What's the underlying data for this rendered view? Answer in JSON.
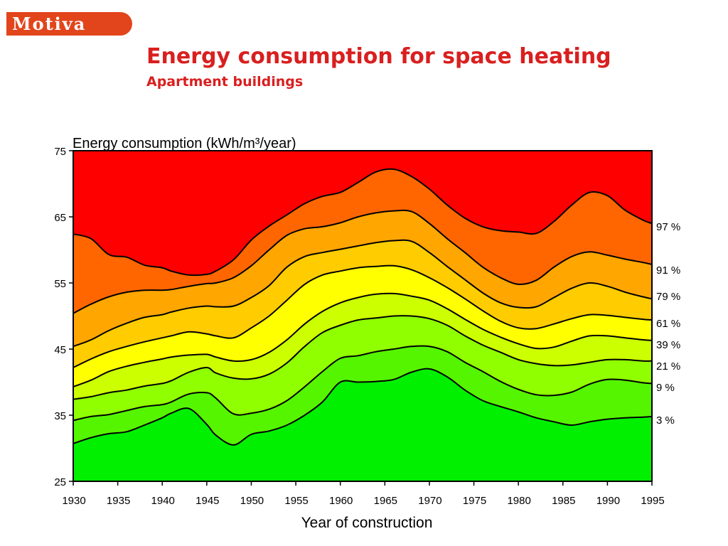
{
  "logo": {
    "text": "Motiva",
    "color": "#e2451b"
  },
  "header": {
    "title": "Energy consumption for space heating",
    "subtitle": "Apartment buildings",
    "color": "#d91f1f"
  },
  "chart_data": {
    "type": "area",
    "stacked": true,
    "ylabel": "Energy consumption (kWh/m³/year)",
    "xlabel": "Year of construction",
    "ylim": [
      25,
      75
    ],
    "xlim": [
      1930,
      1995
    ],
    "yticks": [
      25,
      35,
      45,
      55,
      65,
      75
    ],
    "yticklabels": [
      "25",
      "35",
      "45",
      "55",
      "65",
      "75"
    ],
    "xticks": [
      1930,
      1935,
      1940,
      1945,
      1950,
      1955,
      1960,
      1965,
      1970,
      1975,
      1980,
      1985,
      1990,
      1995
    ],
    "xticklabels": [
      "1930",
      "1935",
      "1940",
      "1945",
      "1950",
      "1955",
      "1960",
      "1965",
      "1970",
      "1975",
      "1980",
      "1985",
      "1990",
      "1995"
    ],
    "grid": false,
    "legend": "none",
    "x": [
      1930,
      1932,
      1934,
      1936,
      1938,
      1940,
      1941,
      1943,
      1945,
      1946,
      1948,
      1950,
      1952,
      1954,
      1956,
      1958,
      1960,
      1962,
      1964,
      1966,
      1968,
      1970,
      1972,
      1974,
      1976,
      1978,
      1980,
      1982,
      1984,
      1986,
      1988,
      1990,
      1992,
      1994,
      1995
    ],
    "boundaries": [
      {
        "name": "3 %",
        "values": [
          30.7,
          31.6,
          32.2,
          32.5,
          33.5,
          34.6,
          35.3,
          36.0,
          33.6,
          32.0,
          30.5,
          32.1,
          32.6,
          33.5,
          35.0,
          37.0,
          40.0,
          40.0,
          40.1,
          40.4,
          41.5,
          42.0,
          40.8,
          38.8,
          37.2,
          36.3,
          35.5,
          34.6,
          34.0,
          33.5,
          34.0,
          34.4,
          34.6,
          34.7,
          34.8
        ]
      },
      {
        "name": "9 %",
        "values": [
          34.2,
          34.8,
          35.1,
          35.7,
          36.3,
          36.6,
          37.0,
          38.2,
          38.4,
          37.6,
          35.2,
          35.3,
          35.9,
          37.2,
          39.3,
          41.6,
          43.6,
          44.0,
          44.6,
          45.0,
          45.4,
          45.4,
          44.6,
          43.0,
          41.6,
          40.1,
          38.9,
          38.1,
          38.0,
          38.5,
          39.7,
          40.4,
          40.3,
          39.9,
          39.8
        ]
      },
      {
        "name": "21 %",
        "values": [
          37.4,
          37.8,
          38.4,
          38.8,
          39.4,
          39.8,
          40.2,
          41.5,
          42.2,
          41.4,
          40.6,
          40.5,
          41.2,
          42.9,
          45.4,
          47.5,
          48.6,
          49.4,
          49.7,
          50.0,
          50.0,
          49.6,
          48.6,
          47.0,
          45.6,
          44.5,
          43.4,
          42.8,
          42.5,
          42.6,
          43.0,
          43.4,
          43.4,
          43.2,
          43.2
        ]
      },
      {
        "name": "39 %",
        "values": [
          39.3,
          40.3,
          41.6,
          42.4,
          43.0,
          43.5,
          43.8,
          44.1,
          44.2,
          43.8,
          43.2,
          43.4,
          44.5,
          46.4,
          48.8,
          50.7,
          52.0,
          52.8,
          53.3,
          53.4,
          53.0,
          52.4,
          51.1,
          49.5,
          48.0,
          46.8,
          45.8,
          45.1,
          45.3,
          46.2,
          47.0,
          47.0,
          46.7,
          46.4,
          46.3
        ]
      },
      {
        "name": "61 %",
        "values": [
          42.2,
          43.5,
          44.6,
          45.4,
          46.1,
          46.7,
          47.0,
          47.6,
          47.3,
          47.0,
          46.7,
          48.2,
          50.0,
          52.4,
          54.8,
          56.2,
          56.8,
          57.3,
          57.5,
          57.6,
          57.0,
          55.8,
          54.3,
          52.6,
          50.8,
          49.2,
          48.2,
          48.1,
          48.8,
          49.6,
          50.2,
          50.1,
          49.8,
          49.5,
          49.4
        ]
      },
      {
        "name": "79 %",
        "values": [
          45.4,
          46.4,
          47.8,
          48.9,
          49.8,
          50.2,
          50.6,
          51.2,
          51.5,
          51.4,
          51.5,
          52.8,
          54.6,
          57.4,
          59.0,
          59.6,
          60.1,
          60.6,
          61.1,
          61.4,
          61.3,
          59.6,
          57.5,
          55.5,
          53.5,
          52.0,
          51.3,
          51.4,
          52.8,
          54.2,
          55.0,
          54.5,
          53.6,
          52.9,
          52.6
        ]
      },
      {
        "name": "91 %",
        "values": [
          50.4,
          51.8,
          52.9,
          53.6,
          53.9,
          53.9,
          54.0,
          54.5,
          54.9,
          55.0,
          55.8,
          57.6,
          60.0,
          62.2,
          63.2,
          63.5,
          64.1,
          65.0,
          65.6,
          65.9,
          65.8,
          64.0,
          61.7,
          59.6,
          57.4,
          55.8,
          54.8,
          55.4,
          57.4,
          59.0,
          59.7,
          59.2,
          58.6,
          58.1,
          57.8
        ]
      },
      {
        "name": "97 %",
        "values": [
          62.4,
          61.7,
          59.3,
          58.9,
          57.7,
          57.3,
          56.8,
          56.2,
          56.3,
          56.8,
          58.5,
          61.5,
          63.6,
          65.3,
          67.0,
          68.1,
          68.7,
          70.2,
          71.8,
          72.2,
          71.1,
          69.2,
          66.8,
          64.8,
          63.5,
          62.9,
          62.7,
          62.5,
          64.3,
          66.8,
          68.7,
          68.2,
          66.0,
          64.5,
          64.0
        ]
      }
    ],
    "band_colors": [
      "#00f000",
      "#55f500",
      "#90ff00",
      "#ccff00",
      "#ffff00",
      "#ffcc00",
      "#ffa600",
      "#ff6600",
      "#ff0000"
    ],
    "right_labels": [
      "97 %",
      "91 %",
      "79 %",
      "61 %",
      "39 %",
      "21 %",
      "9 %",
      "3 %"
    ]
  }
}
